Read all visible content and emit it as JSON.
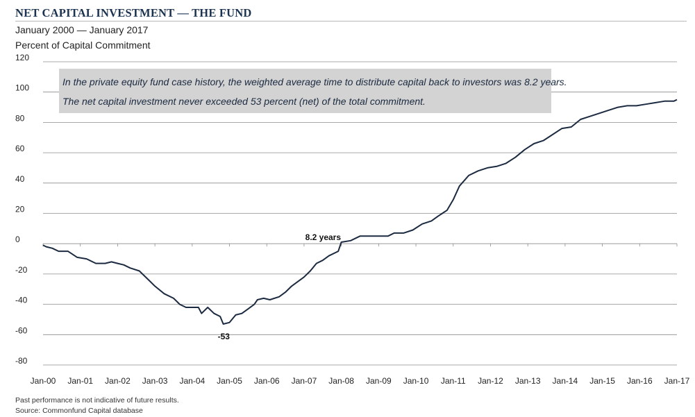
{
  "header": {
    "title": "NET CAPITAL INVESTMENT — THE FUND",
    "subtitle1": "January 2000 — January 2017",
    "subtitle2": "Percent of Capital Commitment"
  },
  "footer": {
    "note": "Past performance is not indicative of future results.",
    "source": "Source: Commonfund Capital database"
  },
  "colors": {
    "line": "#1b2a40",
    "annotation_box": "#d3d3d3",
    "gridline": "#8c8c8c",
    "title": "#1b3350"
  },
  "chart_data": {
    "type": "line",
    "title": "NET CAPITAL INVESTMENT — THE FUND",
    "subtitle": "January 2000 — January 2017",
    "ylabel": "Percent of Capital Commitment",
    "xlabel": "",
    "ylim": [
      -80,
      120
    ],
    "yticks": [
      120,
      100,
      80,
      60,
      40,
      20,
      0,
      -20,
      -40,
      -60,
      -80
    ],
    "xlim": [
      "2000-01",
      "2017-01"
    ],
    "xticks": [
      "Jan-00",
      "Jan-01",
      "Jan-02",
      "Jan-03",
      "Jan-04",
      "Jan-05",
      "Jan-06",
      "Jan-07",
      "Jan-08",
      "Jan-09",
      "Jan-10",
      "Jan-11",
      "Jan-12",
      "Jan-13",
      "Jan-14",
      "Jan-15",
      "Jan-16",
      "Jan-17"
    ],
    "grid": "horizontal",
    "series": [
      {
        "x": [
          "2000-01",
          "2000-02",
          "2000-04",
          "2000-06",
          "2000-09",
          "2000-12",
          "2001-03",
          "2001-06",
          "2001-09",
          "2001-11",
          "2002-01",
          "2002-03",
          "2002-05",
          "2002-08",
          "2002-11",
          "2003-01",
          "2003-04",
          "2003-07",
          "2003-09",
          "2003-11",
          "2004-01",
          "2004-03",
          "2004-04",
          "2004-06",
          "2004-08",
          "2004-10",
          "2004-11",
          "2005-01",
          "2005-03",
          "2005-05",
          "2005-07",
          "2005-09",
          "2005-10",
          "2005-12",
          "2006-02",
          "2006-05",
          "2006-07",
          "2006-09",
          "2006-11",
          "2007-01",
          "2007-03",
          "2007-05",
          "2007-07",
          "2007-09",
          "2007-12",
          "2008-01",
          "2008-04",
          "2008-07",
          "2008-10",
          "2009-01",
          "2009-04",
          "2009-06",
          "2009-09",
          "2009-12",
          "2010-03",
          "2010-06",
          "2010-08",
          "2010-11",
          "2011-01",
          "2011-03",
          "2011-06",
          "2011-09",
          "2011-12",
          "2012-03",
          "2012-06",
          "2012-09",
          "2012-12",
          "2013-03",
          "2013-06",
          "2013-09",
          "2013-12",
          "2014-03",
          "2014-06",
          "2014-09",
          "2014-12",
          "2015-03",
          "2015-06",
          "2015-09",
          "2015-12",
          "2016-03",
          "2016-06",
          "2016-09",
          "2016-12",
          "2017-01"
        ],
        "values": [
          -1,
          -2,
          -3,
          -5,
          -5,
          -9,
          -10,
          -13,
          -13,
          -12,
          -13,
          -14,
          -16,
          -18,
          -24,
          -28,
          -33,
          -36,
          -40,
          -42,
          -42,
          -42,
          -46,
          -42,
          -46,
          -48,
          -53,
          -52,
          -47,
          -46,
          -43,
          -40,
          -37,
          -36,
          -37,
          -35,
          -32,
          -28,
          -25,
          -22,
          -18,
          -13,
          -11,
          -8,
          -5,
          1,
          2,
          5,
          5,
          5,
          5,
          7,
          7,
          9,
          13,
          15,
          18,
          22,
          29,
          38,
          45,
          48,
          50,
          51,
          53,
          57,
          62,
          66,
          68,
          72,
          76,
          77,
          82,
          84,
          86,
          88,
          90,
          91,
          91,
          92,
          93,
          94,
          94,
          95
        ]
      }
    ],
    "annotations": [
      {
        "text": "In the private equity fund case history, the weighted average time to distribute capital back to investors was 8.2 years.",
        "placement": "top-left box"
      },
      {
        "text": "The net capital investment never exceeded 53 percent (net) of the total commitment.",
        "placement": "top-left box"
      },
      {
        "text": "8.2 years",
        "x": "2008-01",
        "y": 0
      },
      {
        "text": "-53",
        "x": "2004-11",
        "y": -53
      }
    ]
  }
}
